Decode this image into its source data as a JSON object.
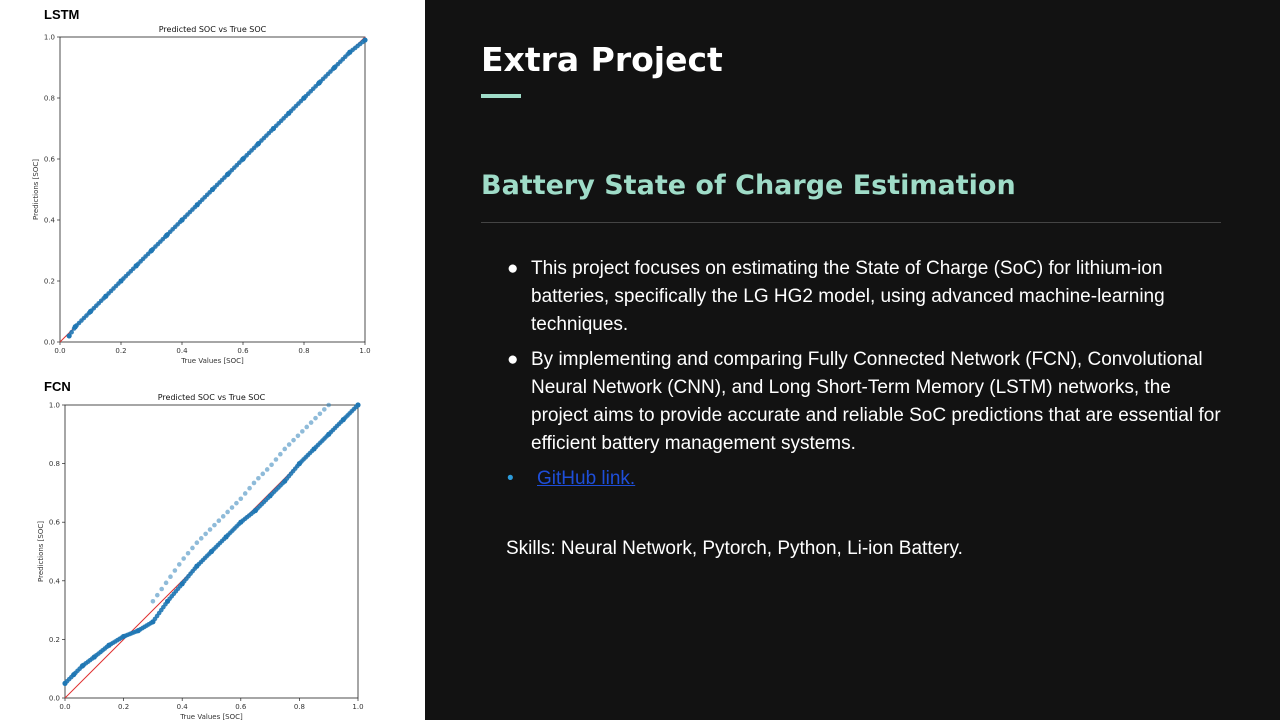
{
  "left": {
    "lstm_label": "LSTM",
    "fcn_label": "FCN"
  },
  "slide": {
    "title": "Extra Project",
    "subtitle": "Battery State of Charge Estimation",
    "bullets": [
      "This project focuses on estimating the State of Charge (SoC) for lithium-ion batteries, specifically the LG HG2 model, using advanced machine-learning techniques.",
      "By implementing and comparing Fully Connected Network (FCN), Convolutional Neural Network (CNN), and Long Short-Term Memory (LSTM) networks, the project aims to provide accurate and reliable SoC predictions that are essential for efficient battery management systems."
    ],
    "link_text": "GitHub link.",
    "skills": "Skills: Neural Network, Pytorch, Python, Li-ion Battery.",
    "accent_color": "#9fdcc8",
    "link_color": "#1e4ed8"
  },
  "chart_data": [
    {
      "type": "scatter",
      "title": "Predicted SOC vs True SOC",
      "xlabel": "True Values [SOC]",
      "ylabel": "Predictions [SOC]",
      "xlim": [
        0,
        1
      ],
      "ylim": [
        0,
        1
      ],
      "xticks": [
        "0.0",
        "0.2",
        "0.4",
        "0.6",
        "0.8",
        "1.0"
      ],
      "yticks": [
        "0.0",
        "0.2",
        "0.4",
        "0.6",
        "0.8",
        "1.0"
      ],
      "grid": false,
      "reference_line": "y = x (red)",
      "point_color": "#1f77b4",
      "x": [
        0.03,
        0.05,
        0.1,
        0.15,
        0.2,
        0.25,
        0.3,
        0.35,
        0.4,
        0.45,
        0.5,
        0.55,
        0.6,
        0.65,
        0.7,
        0.75,
        0.8,
        0.85,
        0.9,
        0.95,
        1.0
      ],
      "y": [
        0.02,
        0.05,
        0.1,
        0.15,
        0.2,
        0.25,
        0.3,
        0.35,
        0.4,
        0.45,
        0.5,
        0.55,
        0.6,
        0.65,
        0.7,
        0.75,
        0.8,
        0.85,
        0.9,
        0.95,
        0.99
      ]
    },
    {
      "type": "scatter",
      "title": "Predicted SOC vs True SOC",
      "xlabel": "True Values [SOC]",
      "ylabel": "Predictions [SOC]",
      "xlim": [
        0,
        1
      ],
      "ylim": [
        0,
        1
      ],
      "xticks": [
        "0.0",
        "0.2",
        "0.4",
        "0.6",
        "0.8",
        "1.0"
      ],
      "yticks": [
        "0.0",
        "0.2",
        "0.4",
        "0.6",
        "0.8",
        "1.0"
      ],
      "grid": false,
      "reference_line": "y = x (red)",
      "point_color": "#1f77b4",
      "x": [
        0.0,
        0.03,
        0.06,
        0.1,
        0.15,
        0.2,
        0.25,
        0.3,
        0.35,
        0.4,
        0.45,
        0.5,
        0.55,
        0.6,
        0.65,
        0.7,
        0.75,
        0.8,
        0.85,
        0.9,
        0.95,
        1.0
      ],
      "y": [
        0.05,
        0.08,
        0.11,
        0.14,
        0.18,
        0.21,
        0.23,
        0.26,
        0.33,
        0.39,
        0.45,
        0.5,
        0.55,
        0.6,
        0.64,
        0.69,
        0.74,
        0.8,
        0.85,
        0.9,
        0.95,
        1.0
      ],
      "upper_band_x": [
        0.3,
        0.35,
        0.4,
        0.45,
        0.5,
        0.55,
        0.6,
        0.65,
        0.7,
        0.75,
        0.8,
        0.85,
        0.9
      ],
      "upper_band_y": [
        0.33,
        0.4,
        0.47,
        0.53,
        0.58,
        0.63,
        0.68,
        0.74,
        0.79,
        0.85,
        0.9,
        0.95,
        1.0
      ]
    }
  ]
}
